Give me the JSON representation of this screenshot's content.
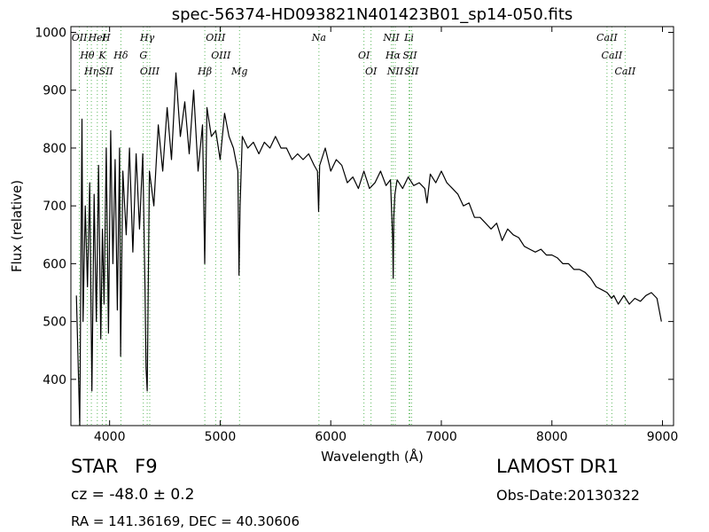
{
  "chart_data": {
    "type": "line",
    "title": "spec-56374-HD093821N401423B01_sp14-050.fits",
    "xlabel": "Wavelength (Å)",
    "ylabel": "Flux (relative)",
    "xlim": [
      3650,
      9100
    ],
    "ylim": [
      320,
      1010
    ],
    "x_ticks": [
      4000,
      5000,
      6000,
      7000,
      8000,
      9000
    ],
    "y_ticks": [
      400,
      500,
      600,
      700,
      800,
      900,
      1000
    ],
    "grid": false,
    "line_color": "#000000",
    "marker_line_color": "#5cb85c",
    "spectrum": {
      "x": [
        3700,
        3730,
        3750,
        3760,
        3780,
        3800,
        3820,
        3840,
        3860,
        3880,
        3900,
        3920,
        3935,
        3950,
        3970,
        3990,
        4010,
        4030,
        4050,
        4070,
        4090,
        4100,
        4120,
        4150,
        4180,
        4210,
        4240,
        4270,
        4300,
        4320,
        4330,
        4340,
        4360,
        4400,
        4440,
        4480,
        4520,
        4560,
        4600,
        4640,
        4680,
        4720,
        4760,
        4800,
        4840,
        4860,
        4880,
        4920,
        4960,
        5000,
        5040,
        5080,
        5120,
        5160,
        5170,
        5180,
        5200,
        5250,
        5300,
        5350,
        5400,
        5450,
        5500,
        5550,
        5600,
        5650,
        5700,
        5750,
        5800,
        5850,
        5880,
        5890,
        5900,
        5950,
        6000,
        6050,
        6100,
        6150,
        6200,
        6250,
        6300,
        6350,
        6400,
        6450,
        6500,
        6540,
        6560,
        6565,
        6570,
        6580,
        6600,
        6650,
        6700,
        6750,
        6800,
        6850,
        6870,
        6900,
        6950,
        7000,
        7050,
        7100,
        7150,
        7200,
        7250,
        7300,
        7350,
        7400,
        7450,
        7500,
        7550,
        7600,
        7650,
        7700,
        7750,
        7800,
        7850,
        7900,
        7950,
        8000,
        8050,
        8100,
        8150,
        8200,
        8250,
        8300,
        8350,
        8400,
        8450,
        8500,
        8540,
        8560,
        8600,
        8650,
        8700,
        8750,
        8800,
        8850,
        8900,
        8950,
        8990
      ],
      "y": [
        545,
        320,
        850,
        500,
        700,
        560,
        740,
        380,
        720,
        500,
        770,
        470,
        660,
        530,
        800,
        480,
        830,
        600,
        780,
        520,
        800,
        440,
        760,
        650,
        800,
        620,
        790,
        660,
        790,
        560,
        420,
        380,
        760,
        700,
        840,
        760,
        870,
        780,
        930,
        820,
        880,
        790,
        900,
        760,
        840,
        600,
        870,
        820,
        830,
        780,
        860,
        820,
        800,
        760,
        580,
        700,
        820,
        800,
        810,
        790,
        810,
        800,
        820,
        800,
        800,
        780,
        790,
        780,
        790,
        770,
        760,
        690,
        770,
        800,
        760,
        780,
        770,
        740,
        750,
        730,
        760,
        730,
        740,
        760,
        735,
        745,
        640,
        575,
        680,
        720,
        745,
        730,
        750,
        735,
        740,
        730,
        705,
        755,
        740,
        760,
        740,
        730,
        720,
        700,
        705,
        680,
        680,
        670,
        660,
        670,
        640,
        660,
        650,
        645,
        630,
        625,
        620,
        625,
        615,
        615,
        610,
        600,
        600,
        590,
        590,
        585,
        575,
        560,
        555,
        550,
        540,
        545,
        530,
        545,
        530,
        540,
        535,
        545,
        550,
        540,
        500
      ]
    },
    "spectral_lines": [
      {
        "label": "OII",
        "wavelength": 3727
      },
      {
        "label": "Hθ",
        "wavelength": 3798
      },
      {
        "label": "Hη",
        "wavelength": 3835
      },
      {
        "label": "HeI",
        "wavelength": 3889
      },
      {
        "label": "K",
        "wavelength": 3934
      },
      {
        "label": "SII",
        "wavelength": 3969
      },
      {
        "label": "H",
        "wavelength": 3969
      },
      {
        "label": "Hδ",
        "wavelength": 4102
      },
      {
        "label": "OIII",
        "wavelength": 4363
      },
      {
        "label": "Hγ",
        "wavelength": 4340
      },
      {
        "label": "G",
        "wavelength": 4305
      },
      {
        "label": "Hβ",
        "wavelength": 4861
      },
      {
        "label": "OIII",
        "wavelength": 4959
      },
      {
        "label": "OIII",
        "wavelength": 5007
      },
      {
        "label": "Mg",
        "wavelength": 5175
      },
      {
        "label": "Na",
        "wavelength": 5893
      },
      {
        "label": "OI",
        "wavelength": 6300
      },
      {
        "label": "OI",
        "wavelength": 6364
      },
      {
        "label": "NII",
        "wavelength": 6548
      },
      {
        "label": "Hα",
        "wavelength": 6563
      },
      {
        "label": "NII",
        "wavelength": 6583
      },
      {
        "label": "Li",
        "wavelength": 6708
      },
      {
        "label": "SII",
        "wavelength": 6716
      },
      {
        "label": "SII",
        "wavelength": 6731
      },
      {
        "label": "CaII",
        "wavelength": 8498
      },
      {
        "label": "CaII",
        "wavelength": 8542
      },
      {
        "label": "CaII",
        "wavelength": 8662
      }
    ]
  },
  "footer": {
    "object_class": "STAR",
    "subclass": "F9",
    "survey": "LAMOST DR1",
    "cz_text": "cz = -48.0 ± 0.2",
    "obs_date": "Obs-Date:20130322",
    "coords": "RA = 141.36169, DEC = 40.30606"
  }
}
